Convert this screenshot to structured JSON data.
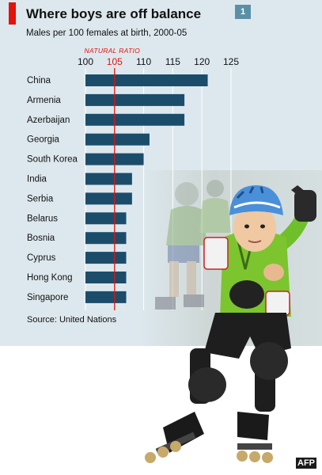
{
  "chart_number": "1",
  "chart_data": {
    "type": "bar",
    "orientation": "horizontal",
    "title": "Where boys are off balance",
    "subtitle": "Males per 100 females at birth, 2000-05",
    "categories": [
      "China",
      "Armenia",
      "Azerbaijan",
      "Georgia",
      "South Korea",
      "India",
      "Serbia",
      "Belarus",
      "Bosnia",
      "Cyprus",
      "Hong Kong",
      "Singapore"
    ],
    "values": [
      121,
      117,
      117,
      111,
      110,
      108,
      108,
      107,
      107,
      107,
      107,
      107
    ],
    "xlim": [
      100,
      125
    ],
    "xticks": [
      "100",
      "105",
      "110",
      "115",
      "120",
      "125"
    ],
    "reference_line": {
      "value": 105,
      "label": "NATURAL RATIO",
      "color": "#e3120b"
    },
    "bar_color": "#1b4d6b",
    "grid": true,
    "source": "Source: United Nations"
  },
  "photo_credit": "AFP"
}
